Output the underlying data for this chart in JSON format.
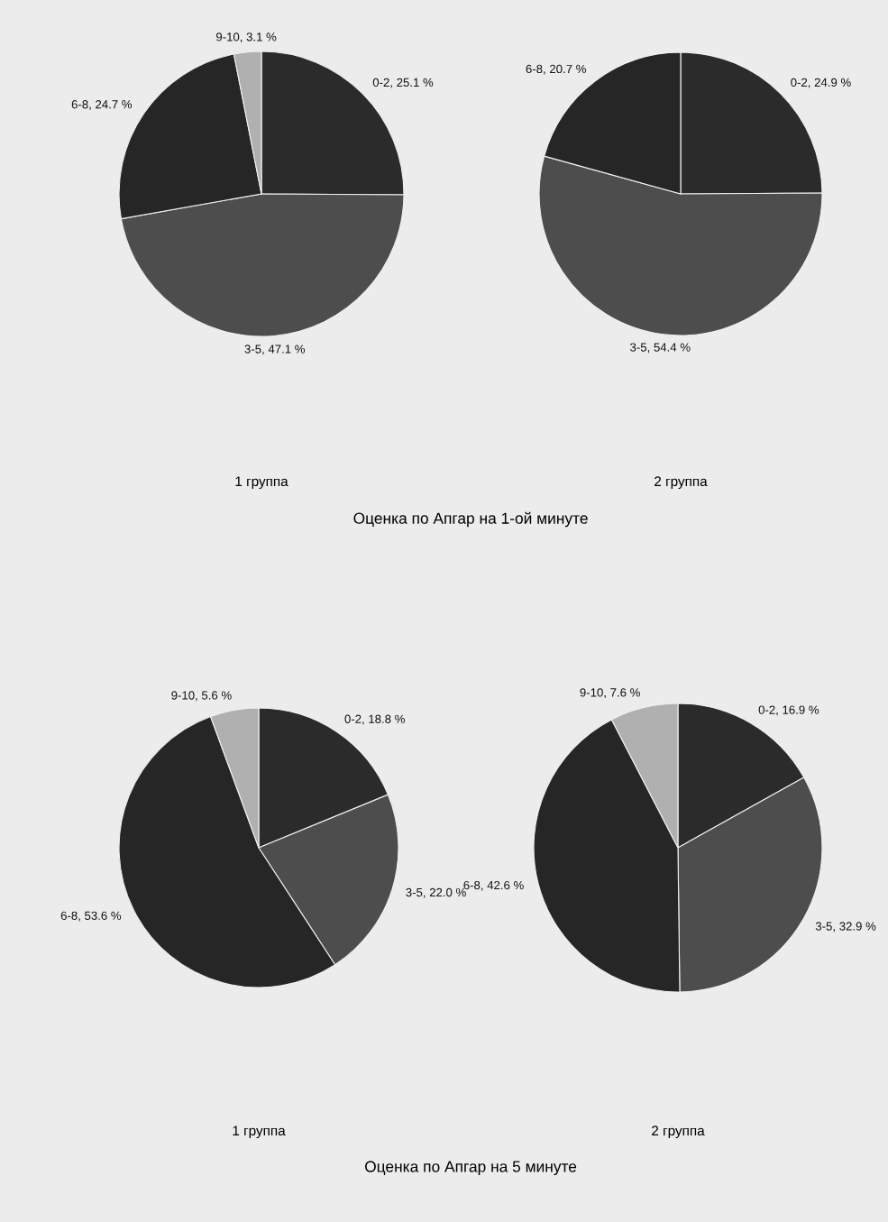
{
  "chart_data": [
    {
      "type": "pie",
      "title": "1 группа",
      "annotations": [
        "Оценка по Апгар на 1-ой минуте"
      ],
      "categories": [
        "0-2",
        "3-5",
        "6-8",
        "9-10"
      ],
      "values": [
        25.1,
        47.1,
        24.7,
        3.1
      ],
      "colors": [
        "#2b2b2b",
        "#4d4d4d",
        "#262626",
        "#b0b0b0"
      ],
      "value_labels": [
        "25.1 %",
        "47.1 %",
        "24.7 %",
        "3.1 %"
      ]
    },
    {
      "type": "pie",
      "title": "2 группа",
      "categories": [
        "0-2",
        "3-5",
        "6-8"
      ],
      "values": [
        24.9,
        54.4,
        20.7
      ],
      "colors": [
        "#2b2b2b",
        "#4d4d4d",
        "#262626"
      ],
      "value_labels": [
        "24.9 %",
        "54.4 %",
        "20.7 %"
      ]
    },
    {
      "type": "pie",
      "title": "1 группа",
      "annotations": [
        "Оценка по Апгар на 5 минуте"
      ],
      "categories": [
        "0-2",
        "3-5",
        "6-8",
        "9-10"
      ],
      "values": [
        18.8,
        22.0,
        53.6,
        5.6
      ],
      "colors": [
        "#2b2b2b",
        "#4d4d4d",
        "#262626",
        "#b0b0b0"
      ],
      "value_labels": [
        "18.8 %",
        "22.0 %",
        "53.6 %",
        "5.6 %"
      ]
    },
    {
      "type": "pie",
      "title": "2 группа",
      "categories": [
        "0-2",
        "3-5",
        "6-8",
        "9-10"
      ],
      "values": [
        16.9,
        32.9,
        42.6,
        7.6
      ],
      "colors": [
        "#2b2b2b",
        "#4d4d4d",
        "#262626",
        "#b0b0b0"
      ],
      "value_labels": [
        "16.9 %",
        "32.9 %",
        "42.6 %",
        "7.6 %"
      ]
    }
  ]
}
